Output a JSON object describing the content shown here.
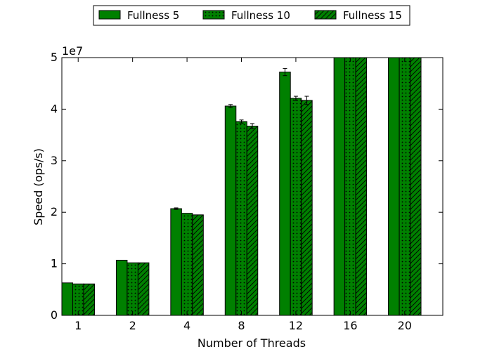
{
  "chart_data": {
    "type": "bar",
    "categories": [
      "1",
      "2",
      "4",
      "8",
      "12",
      "16",
      "20"
    ],
    "series": [
      {
        "name": "Fullness 5",
        "pattern": "solid",
        "values": [
          6300000,
          10700000,
          20700000,
          40600000,
          47200000,
          50000000,
          50000000
        ],
        "errors": [
          0,
          0,
          150000,
          300000,
          700000,
          0,
          0
        ]
      },
      {
        "name": "Fullness 10",
        "pattern": "dots",
        "values": [
          6100000,
          10200000,
          19800000,
          37600000,
          42100000,
          50000000,
          50000000
        ],
        "errors": [
          0,
          0,
          0,
          300000,
          400000,
          0,
          0
        ]
      },
      {
        "name": "Fullness 15",
        "pattern": "hatch",
        "values": [
          6100000,
          10200000,
          19500000,
          36700000,
          41700000,
          50000000,
          50000000
        ],
        "errors": [
          0,
          0,
          0,
          500000,
          800000,
          0,
          0
        ]
      }
    ],
    "title": "",
    "xlabel": "Number of Threads",
    "ylabel": "Speed (ops/s)",
    "ylim": [
      0,
      50000000
    ],
    "yticks": [
      0,
      10000000,
      20000000,
      30000000,
      40000000,
      50000000
    ],
    "ytick_labels": [
      "0",
      "1",
      "2",
      "3",
      "4",
      "5"
    ],
    "y_multiplier": "1e7",
    "grid": false,
    "legend_position": "top-center",
    "bar_color": "#008000"
  }
}
